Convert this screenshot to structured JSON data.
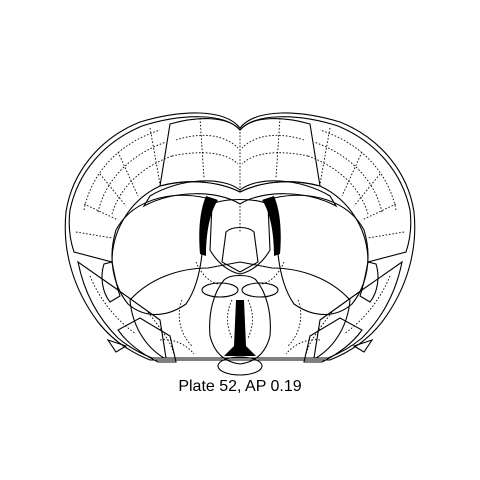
{
  "caption": "Plate 52, AP 0.19",
  "colors": {
    "isocortex_dorsal": "#1a7d5d",
    "isocortex_medial": "#219a5a",
    "lateral_cortex": "#2ea876",
    "olfactory_lateral": "#5cc4a8",
    "claustrum": "#a9ea9b",
    "striatum": "#99d6f5",
    "septum": "#8fc6eb",
    "pallidum_region": "#9aa9d8",
    "ventral_region": "#7cb8ea",
    "hypothalamus_preoptic": "#f05a4c",
    "fiber_tract": "#d8d8d8",
    "ventricle": "#000000"
  },
  "regions": [
    "isocortex-dorsal",
    "isocortex-medial",
    "lateral-cortex",
    "olfactory-lateral",
    "claustrum",
    "striatum-left",
    "striatum-right",
    "septum",
    "pallidum",
    "ventral-striatum",
    "preoptic",
    "corpus-callosum",
    "lateral-ventricles",
    "third-ventricle"
  ]
}
